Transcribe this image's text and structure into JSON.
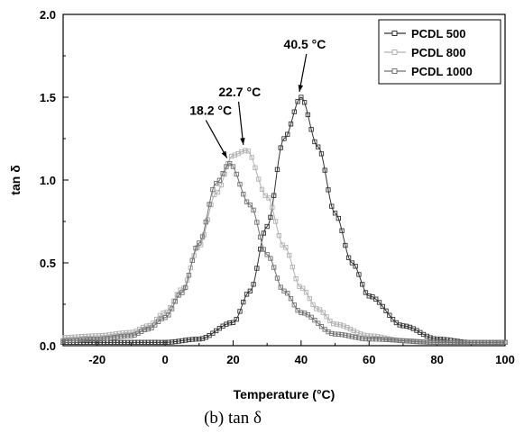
{
  "chart_data": {
    "type": "line",
    "xlabel": "Temperature (°C)",
    "ylabel": "tan δ",
    "xlim": [
      -30,
      100
    ],
    "ylim": [
      0.0,
      2.0
    ],
    "x_ticks": [
      "-20",
      "0",
      "20",
      "40",
      "60",
      "80",
      "100"
    ],
    "y_ticks": [
      "0.0",
      "0.5",
      "1.0",
      "1.5",
      "2.0"
    ],
    "legend_position": "top-right",
    "series": [
      {
        "name": "PCDL 500",
        "color": "#333333",
        "x": [
          -30,
          -20,
          -10,
          0,
          10,
          20,
          25,
          30,
          35,
          40,
          45,
          50,
          55,
          60,
          70,
          80,
          90,
          100
        ],
        "y": [
          0.02,
          0.02,
          0.02,
          0.02,
          0.04,
          0.14,
          0.33,
          0.72,
          1.25,
          1.5,
          1.2,
          0.8,
          0.5,
          0.3,
          0.12,
          0.04,
          0.02,
          0.02
        ]
      },
      {
        "name": "PCDL 800",
        "color": "#b0b0b0",
        "x": [
          -30,
          -20,
          -10,
          -5,
          0,
          5,
          10,
          15,
          20,
          24,
          30,
          35,
          40,
          45,
          50,
          60,
          70,
          80,
          100
        ],
        "y": [
          0.05,
          0.06,
          0.08,
          0.12,
          0.2,
          0.34,
          0.6,
          0.92,
          1.15,
          1.18,
          0.9,
          0.6,
          0.35,
          0.22,
          0.13,
          0.06,
          0.03,
          0.02,
          0.02
        ]
      },
      {
        "name": "PCDL 1000",
        "color": "#707070",
        "x": [
          -30,
          -20,
          -10,
          -5,
          0,
          5,
          10,
          15,
          19,
          25,
          30,
          35,
          40,
          50,
          60,
          80,
          100
        ],
        "y": [
          0.03,
          0.04,
          0.06,
          0.1,
          0.17,
          0.32,
          0.62,
          0.98,
          1.1,
          0.85,
          0.55,
          0.33,
          0.2,
          0.07,
          0.04,
          0.02,
          0.02
        ]
      }
    ],
    "annotations": [
      {
        "text": "18.2 °C",
        "x": 18.2,
        "y": 1.1
      },
      {
        "text": "22.7 °C",
        "x": 23,
        "y": 1.18
      },
      {
        "text": "40.5 °C",
        "x": 39.5,
        "y": 1.5
      }
    ]
  },
  "caption": "(b)  tan   δ"
}
